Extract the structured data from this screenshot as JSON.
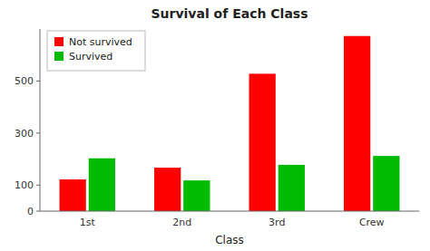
{
  "chart_data": {
    "type": "bar",
    "title": "Survival of Each Class",
    "xlabel": "Class",
    "categories": [
      "1st",
      "2nd",
      "3rd",
      "Crew"
    ],
    "series": [
      {
        "name": "Not survived",
        "color": "#FF0000",
        "values": [
          122,
          167,
          528,
          673
        ]
      },
      {
        "name": "Survived",
        "color": "#00BB00",
        "values": [
          203,
          118,
          178,
          212
        ]
      }
    ],
    "ylim": [
      0,
      700
    ],
    "yticks": [
      0,
      100,
      300,
      500
    ],
    "grid": false,
    "legend": "upper left"
  }
}
